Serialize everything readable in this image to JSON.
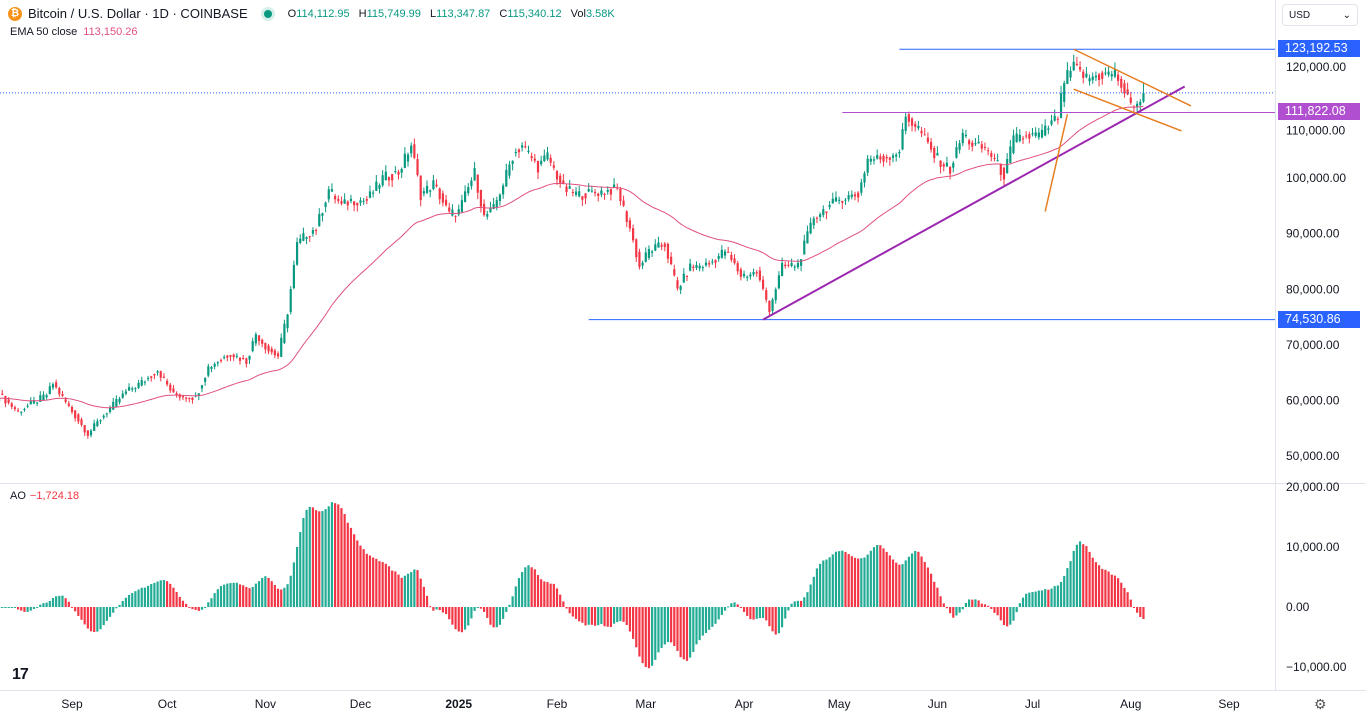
{
  "header": {
    "title": "Bitcoin / U.S. Dollar · 1D · COINBASE",
    "coin_icon": "bitcoin-icon",
    "o_label": "O",
    "o": "114,112.95",
    "h_label": "H",
    "h": "115,749.99",
    "l_label": "L",
    "l": "113,347.87",
    "c_label": "C",
    "c": "115,340.12",
    "vol_label": "Vol",
    "vol": "3.58K"
  },
  "ema": {
    "label": "EMA 50 close",
    "value": "113,150.26"
  },
  "ao": {
    "label": "AO",
    "value": "−1,724.18"
  },
  "currency": {
    "label": "USD"
  },
  "colors": {
    "up": "#089981",
    "down": "#f23645",
    "ema": "#e0507e",
    "hline_blue": "#2962ff",
    "hline_purple": "#9c27b0",
    "trend": "#9c27b0",
    "flag": "#e67e22"
  },
  "levels": [
    {
      "label": "123,192.53",
      "value": 123192.53,
      "from": "2025-05-20",
      "color": "#2962ff"
    },
    {
      "label": "111,822.08",
      "value": 111822.08,
      "from": "2025-05-02",
      "color": "#b04fd0"
    },
    {
      "label": "74,530.86",
      "value": 74530.86,
      "from": "2025-02-11",
      "color": "#2962ff"
    }
  ],
  "chart_data": {
    "type": "candlestick",
    "price_axis": {
      "ticks": [
        "120,000.00",
        "110,000.00",
        "100,000.00",
        "90,000.00",
        "80,000.00",
        "70,000.00",
        "60,000.00",
        "50,000.00"
      ],
      "values": [
        120000,
        110000,
        100000,
        90000,
        80000,
        70000,
        60000,
        50000
      ]
    },
    "ao_axis": {
      "ticks": [
        "20,000.00",
        "10,000.00",
        "0.00",
        "−10,000.00"
      ],
      "values": [
        20000,
        10000,
        0,
        -10000
      ]
    },
    "x_axis": {
      "labels": [
        "Sep",
        "Oct",
        "Nov",
        "Dec",
        "2025",
        "Feb",
        "Mar",
        "Apr",
        "May",
        "Jun",
        "Jul",
        "Aug",
        "Sep"
      ],
      "dates": [
        "2024-09-01",
        "2024-10-01",
        "2024-11-01",
        "2024-12-01",
        "2025-01-01",
        "2025-02-01",
        "2025-03-01",
        "2025-04-01",
        "2025-05-01",
        "2025-06-01",
        "2025-07-01",
        "2025-08-01",
        "2025-09-01"
      ]
    },
    "closes": [
      [
        "2024-08-09",
        61000
      ],
      [
        "2024-08-15",
        58000
      ],
      [
        "2024-08-24",
        61000
      ],
      [
        "2024-08-26",
        63000
      ],
      [
        "2024-09-01",
        58000
      ],
      [
        "2024-09-06",
        54000
      ],
      [
        "2024-09-12",
        58000
      ],
      [
        "2024-09-18",
        61500
      ],
      [
        "2024-09-25",
        64000
      ],
      [
        "2024-09-28",
        65500
      ],
      [
        "2024-10-03",
        61000
      ],
      [
        "2024-10-10",
        60500
      ],
      [
        "2024-10-14",
        66000
      ],
      [
        "2024-10-21",
        68500
      ],
      [
        "2024-10-26",
        67000
      ],
      [
        "2024-10-29",
        72000
      ],
      [
        "2024-11-02",
        69000
      ],
      [
        "2024-11-05",
        68000
      ],
      [
        "2024-11-08",
        76000
      ],
      [
        "2024-11-11",
        88000
      ],
      [
        "2024-11-14",
        90000
      ],
      [
        "2024-11-17",
        91000
      ],
      [
        "2024-11-21",
        98000
      ],
      [
        "2024-11-25",
        95000
      ],
      [
        "2024-11-28",
        96000
      ],
      [
        "2024-12-03",
        96000
      ],
      [
        "2024-12-08",
        100000
      ],
      [
        "2024-12-13",
        101000
      ],
      [
        "2024-12-17",
        106000
      ],
      [
        "2024-12-20",
        97000
      ],
      [
        "2024-12-24",
        99000
      ],
      [
        "2024-12-29",
        93500
      ],
      [
        "2025-01-01",
        94000
      ],
      [
        "2025-01-06",
        101000
      ],
      [
        "2025-01-09",
        93000
      ],
      [
        "2025-01-12",
        94500
      ],
      [
        "2025-01-15",
        99000
      ],
      [
        "2025-01-18",
        104000
      ],
      [
        "2025-01-21",
        106000
      ],
      [
        "2025-01-26",
        102000
      ],
      [
        "2025-01-29",
        104000
      ],
      [
        "2025-02-03",
        98000
      ],
      [
        "2025-02-08",
        97000
      ],
      [
        "2025-02-14",
        97500
      ],
      [
        "2025-02-20",
        98000
      ],
      [
        "2025-02-24",
        91000
      ],
      [
        "2025-02-27",
        84000
      ],
      [
        "2025-03-02",
        87000
      ],
      [
        "2025-03-07",
        88000
      ],
      [
        "2025-03-11",
        80000
      ],
      [
        "2025-03-15",
        84000
      ],
      [
        "2025-03-21",
        84500
      ],
      [
        "2025-03-26",
        87000
      ],
      [
        "2025-03-31",
        82500
      ],
      [
        "2025-04-05",
        83000
      ],
      [
        "2025-04-09",
        76500
      ],
      [
        "2025-04-13",
        84000
      ],
      [
        "2025-04-18",
        84500
      ],
      [
        "2025-04-23",
        93000
      ],
      [
        "2025-04-28",
        95000
      ],
      [
        "2025-05-02",
        96500
      ],
      [
        "2025-05-07",
        97000
      ],
      [
        "2025-05-10",
        103500
      ],
      [
        "2025-05-15",
        103500
      ],
      [
        "2025-05-20",
        105000
      ],
      [
        "2025-05-22",
        111000
      ],
      [
        "2025-05-26",
        109000
      ],
      [
        "2025-05-31",
        104000
      ],
      [
        "2025-06-05",
        101500
      ],
      [
        "2025-06-09",
        108000
      ],
      [
        "2025-06-12",
        106000
      ],
      [
        "2025-06-17",
        105000
      ],
      [
        "2025-06-22",
        100500
      ],
      [
        "2025-06-25",
        107000
      ],
      [
        "2025-06-30",
        107500
      ],
      [
        "2025-07-04",
        108000
      ],
      [
        "2025-07-09",
        111000
      ],
      [
        "2025-07-11",
        117500
      ],
      [
        "2025-07-14",
        120000
      ],
      [
        "2025-07-18",
        118000
      ],
      [
        "2025-07-23",
        118500
      ],
      [
        "2025-07-27",
        119000
      ],
      [
        "2025-08-01",
        113000
      ],
      [
        "2025-08-04",
        114000
      ],
      [
        "2025-08-05",
        115340.12
      ]
    ],
    "indicators": [
      "EMA 50 close",
      "AO"
    ],
    "drawings": {
      "trendline": [
        [
          "2025-04-07",
          74530.86
        ],
        [
          "2025-08-18",
          116500
        ]
      ],
      "flag_upper": [
        [
          "2025-07-14",
          123192.53
        ],
        [
          "2025-08-20",
          113000
        ]
      ],
      "flag_lower": [
        [
          "2025-07-14",
          116000
        ],
        [
          "2025-08-17",
          108500
        ]
      ],
      "pole": [
        [
          "2025-07-05",
          94000
        ],
        [
          "2025-07-12",
          111500
        ]
      ]
    },
    "last_price": 115340.12
  }
}
